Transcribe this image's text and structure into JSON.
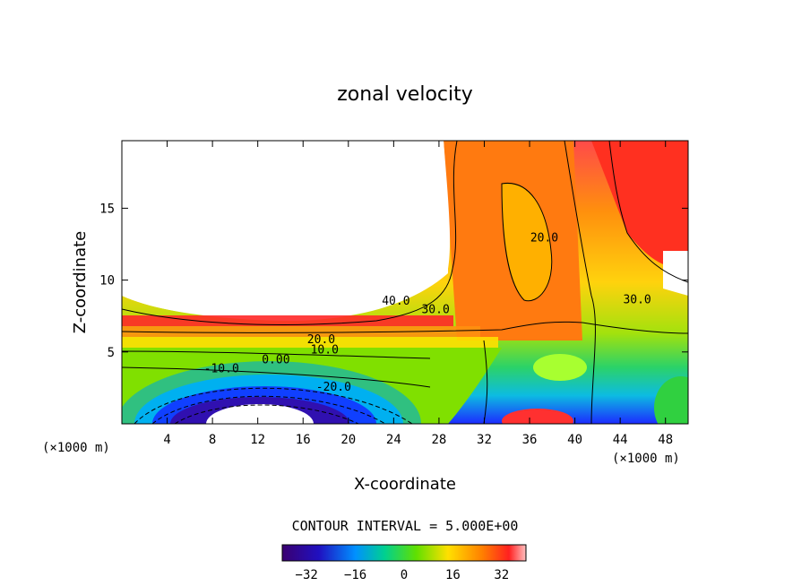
{
  "chart_data": {
    "type": "heatmap",
    "title": "zonal velocity",
    "xlabel": "X-coordinate",
    "ylabel": "Z-coordinate",
    "x_units_left": "(×1000 m)",
    "x_units_right": "(×1000 m)",
    "xlim": [
      0,
      50
    ],
    "ylim": [
      0,
      19.7
    ],
    "x_ticks": [
      4,
      8,
      12,
      16,
      20,
      24,
      28,
      32,
      36,
      40,
      44,
      48
    ],
    "y_ticks": [
      5,
      10,
      15
    ],
    "contour_interval_text": "CONTOUR INTERVAL = 5.000E+00",
    "contour_labels": [
      {
        "text": "40.0",
        "x": 24.2,
        "y": 8.3
      },
      {
        "text": "30.0",
        "x": 27.7,
        "y": 7.7
      },
      {
        "text": "20.0",
        "x": 17.6,
        "y": 5.6
      },
      {
        "text": "10.0",
        "x": 17.9,
        "y": 4.9
      },
      {
        "text": "0.00",
        "x": 13.6,
        "y": 4.2
      },
      {
        "text": "-10.0",
        "x": 8.8,
        "y": 3.6
      },
      {
        "text": "-20.0",
        "x": 18.7,
        "y": 2.3
      },
      {
        "text": "20.0",
        "x": 37.3,
        "y": 12.7
      },
      {
        "text": "30.0",
        "x": 45.5,
        "y": 8.4
      }
    ],
    "colorbar": {
      "range": [
        -40,
        40
      ],
      "ticks": [
        -32,
        -16,
        0,
        16,
        32
      ],
      "tick_labels": [
        "−32",
        "−16",
        "0",
        "16",
        "32"
      ]
    }
  }
}
